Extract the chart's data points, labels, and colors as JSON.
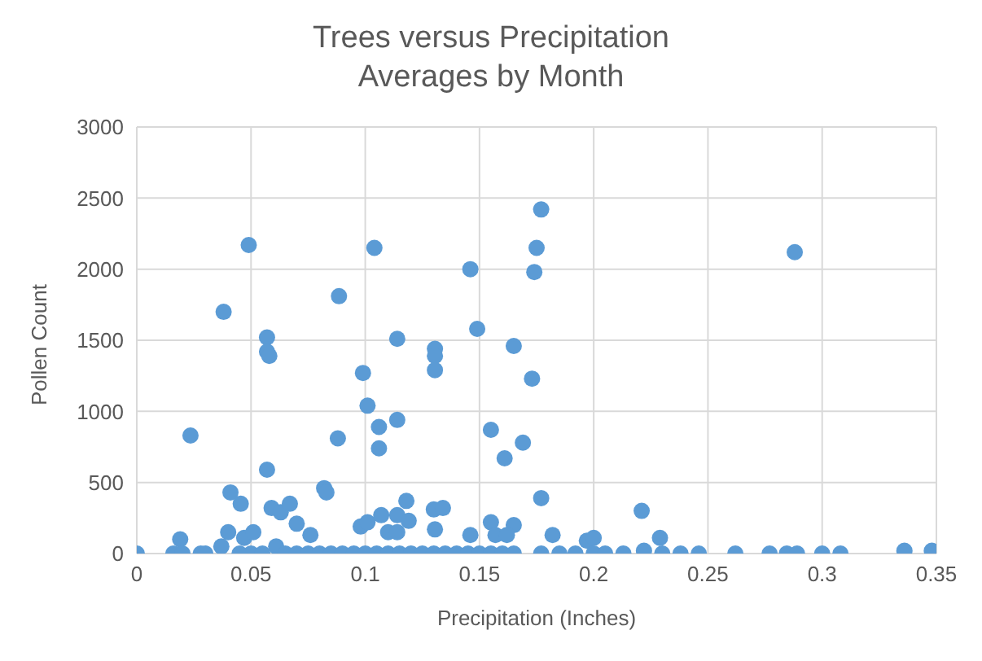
{
  "chart_data": {
    "type": "scatter",
    "title": "Trees versus Precipitation\nAverages by Month",
    "xlabel": "Precipitation (Inches)",
    "ylabel": "Pollen Count",
    "xlim": [
      0,
      0.35
    ],
    "xticks": [
      {
        "value": 0,
        "label": "0"
      },
      {
        "value": 0.05,
        "label": "0.05"
      },
      {
        "value": 0.1,
        "label": "0.1"
      },
      {
        "value": 0.15,
        "label": "0.15"
      },
      {
        "value": 0.2,
        "label": "0.2"
      },
      {
        "value": 0.25,
        "label": "0.25"
      },
      {
        "value": 0.3,
        "label": "0.3"
      },
      {
        "value": 0.35,
        "label": "0.35"
      }
    ],
    "ylim": [
      0,
      3000
    ],
    "yticks": [
      0,
      500,
      1000,
      1500,
      2000,
      2500,
      3000
    ],
    "grid": true,
    "marker": "circle",
    "series": [
      {
        "color": "#5b9bd5",
        "x": [
          0,
          0.0235,
          0.038,
          0.019,
          0.016,
          0.028,
          0.041,
          0.0455,
          0.04,
          0.037,
          0.047,
          0.051,
          0.049,
          0.057,
          0.057,
          0.058,
          0.057,
          0.059,
          0.063,
          0.067,
          0.07,
          0.061,
          0.076,
          0.082,
          0.083,
          0.0885,
          0.088,
          0.099,
          0.101,
          0.106,
          0.106,
          0.104,
          0.114,
          0.114,
          0.098,
          0.101,
          0.107,
          0.11,
          0.114,
          0.114,
          0.118,
          0.119,
          0.1305,
          0.1305,
          0.1305,
          0.13,
          0.134,
          0.1305,
          0.146,
          0.149,
          0.146,
          0.155,
          0.155,
          0.161,
          0.165,
          0.169,
          0.173,
          0.174,
          0.175,
          0.177,
          0.165,
          0.157,
          0.162,
          0.177,
          0.182,
          0.288,
          0.197,
          0.2,
          0.221,
          0.229,
          0.222,
          0.02,
          0.03,
          0.045,
          0.05,
          0.055,
          0.065,
          0.07,
          0.075,
          0.08,
          0.085,
          0.09,
          0.095,
          0.1,
          0.105,
          0.11,
          0.115,
          0.12,
          0.125,
          0.13,
          0.135,
          0.14,
          0.145,
          0.15,
          0.155,
          0.16,
          0.165,
          0.177,
          0.185,
          0.192,
          0.2,
          0.205,
          0.213,
          0.23,
          0.238,
          0.246,
          0.262,
          0.277,
          0.2845,
          0.289,
          0.3,
          0.308,
          0.336,
          0.348
        ],
        "values": [
          0,
          830,
          1700,
          100,
          0,
          0,
          430,
          350,
          150,
          50,
          110,
          150,
          2170,
          1520,
          1420,
          1390,
          590,
          320,
          290,
          350,
          210,
          50,
          130,
          460,
          430,
          1810,
          810,
          1270,
          1040,
          890,
          740,
          2150,
          1510,
          940,
          190,
          220,
          270,
          150,
          270,
          150,
          370,
          230,
          1440,
          1390,
          1290,
          310,
          320,
          170,
          2000,
          1580,
          130,
          220,
          870,
          670,
          1460,
          780,
          1230,
          1980,
          2150,
          2420,
          200,
          130,
          130,
          390,
          130,
          2120,
          90,
          110,
          300,
          110,
          20,
          0,
          0,
          0,
          0,
          0,
          0,
          0,
          0,
          0,
          0,
          0,
          0,
          0,
          0,
          0,
          0,
          0,
          0,
          0,
          0,
          0,
          0,
          0,
          0,
          0,
          0,
          0,
          0,
          0,
          0,
          0,
          0,
          0,
          0,
          0,
          0,
          0,
          0,
          0,
          0,
          0,
          20,
          20
        ]
      }
    ]
  }
}
